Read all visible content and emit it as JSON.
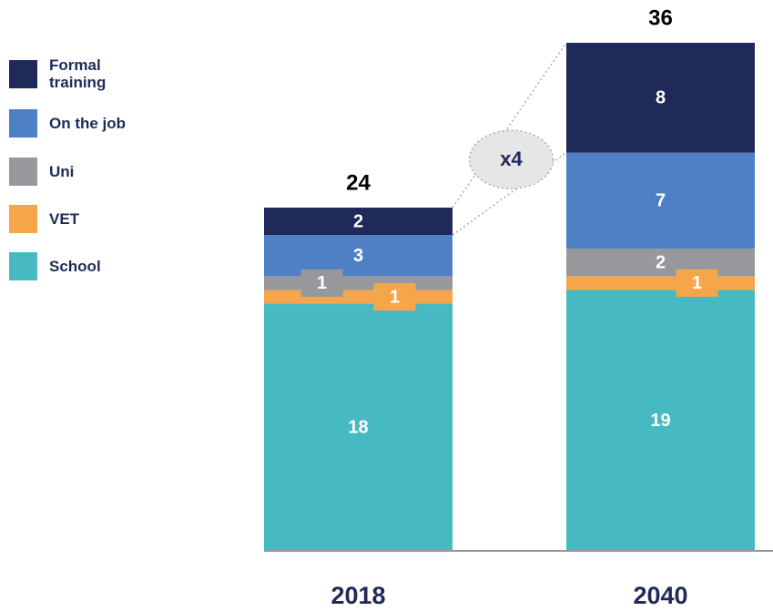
{
  "chart_data": {
    "type": "stacked-bar",
    "categories": [
      "2018",
      "2040"
    ],
    "series": [
      {
        "name": "School",
        "color": "#47bac1",
        "values": [
          18,
          19
        ]
      },
      {
        "name": "VET",
        "color": "#f5a54a",
        "values": [
          1,
          1
        ]
      },
      {
        "name": "Uni",
        "color": "#96989b",
        "values": [
          1,
          2
        ]
      },
      {
        "name": "On the job",
        "color": "#4f7fc4",
        "values": [
          3,
          7
        ]
      },
      {
        "name": "Formal training",
        "color": "#1f2a5a",
        "values": [
          2,
          8
        ]
      }
    ],
    "totals": [
      24,
      36
    ],
    "annotation": "x4"
  }
}
